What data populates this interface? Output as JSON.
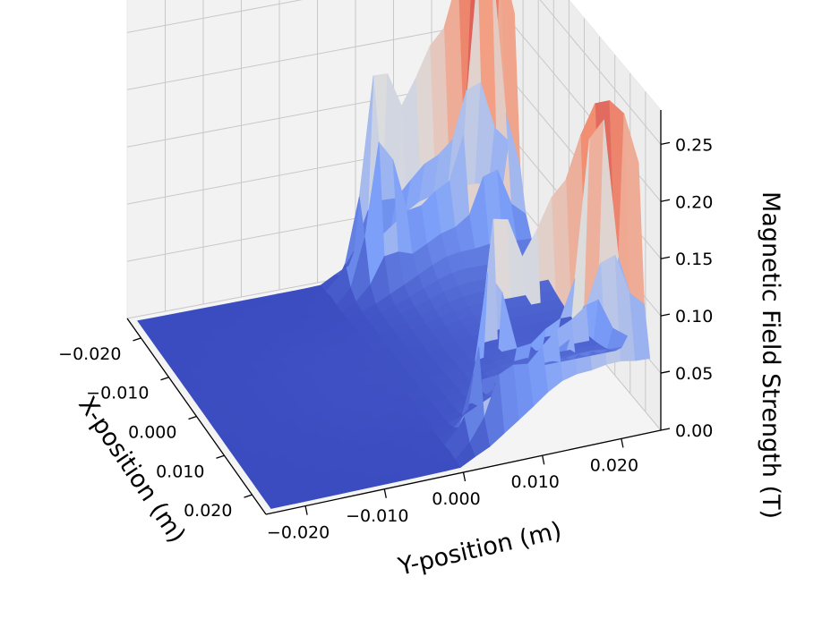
{
  "chart_data": {
    "type": "surface3d",
    "title": "",
    "xlabel": "X-position (m)",
    "ylabel": "Y-position (m)",
    "zlabel": "Magnetic Field Strength (T)",
    "xlim": [
      -0.025,
      0.025
    ],
    "ylim": [
      -0.025,
      0.025
    ],
    "zlim": [
      0,
      0.28
    ],
    "x_ticks": [
      "−0.020",
      "−0.010",
      "0.000",
      "0.010",
      "0.020"
    ],
    "x_tick_values": [
      -0.02,
      -0.01,
      0.0,
      0.01,
      0.02
    ],
    "y_ticks": [
      "−0.020",
      "−0.010",
      "0.000",
      "0.010",
      "0.020"
    ],
    "y_tick_values": [
      -0.02,
      -0.01,
      0.0,
      0.01,
      0.02
    ],
    "z_ticks": [
      "0.00",
      "0.05",
      "0.10",
      "0.15",
      "0.20",
      "0.25"
    ],
    "z_tick_values": [
      0.0,
      0.05,
      0.1,
      0.15,
      0.2,
      0.25
    ],
    "colormap": "coolwarm",
    "surface": {
      "description_free": true,
      "peaks": [
        {
          "x": -0.0195,
          "y": 0.0195,
          "z": 0.28
        },
        {
          "x": 0.0195,
          "y": 0.0195,
          "z": 0.24
        },
        {
          "x": -0.0195,
          "y": 0.006,
          "z": 0.14
        },
        {
          "x": 0.0195,
          "y": 0.006,
          "z": 0.15
        }
      ]
    }
  },
  "colors": {
    "low": "#3b4cc0",
    "mid": "#dddddd",
    "high": "#b40426",
    "pane": "#f2f2f2",
    "grid": "#c8c8c8"
  }
}
